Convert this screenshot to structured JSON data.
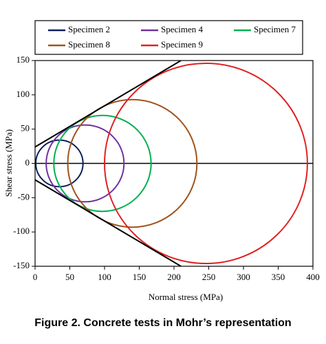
{
  "chart_data": {
    "type": "mohr",
    "title": "Figure 2. Concrete tests in Mohr’s representation",
    "x_label": "Normal stress (MPa)",
    "y_label": "Shear stress (MPa)",
    "xlim": [
      0,
      400
    ],
    "ylim": [
      -150,
      150
    ],
    "xticks": [
      0,
      50,
      100,
      150,
      200,
      250,
      300,
      350,
      400
    ],
    "yticks": [
      -150,
      -100,
      -50,
      0,
      50,
      100,
      150
    ],
    "series": [
      {
        "name": "Specimen 2",
        "color": "#0a1f5c",
        "center": 35,
        "radius": 34
      },
      {
        "name": "Specimen 4",
        "color": "#7030a0",
        "center": 72,
        "radius": 56
      },
      {
        "name": "Specimen 7",
        "color": "#00b050",
        "center": 97,
        "radius": 70
      },
      {
        "name": "Specimen 8",
        "color": "#a0521a",
        "center": 140,
        "radius": 93
      },
      {
        "name": "Specimen 9",
        "color": "#e02020",
        "center": 246,
        "radius": 146
      }
    ],
    "lines": [
      {
        "color": "#000000",
        "x": [
          0,
          210
        ],
        "y": [
          24,
          150
        ]
      },
      {
        "color": "#000000",
        "x": [
          0,
          210
        ],
        "y": [
          -24,
          -150
        ]
      }
    ]
  }
}
